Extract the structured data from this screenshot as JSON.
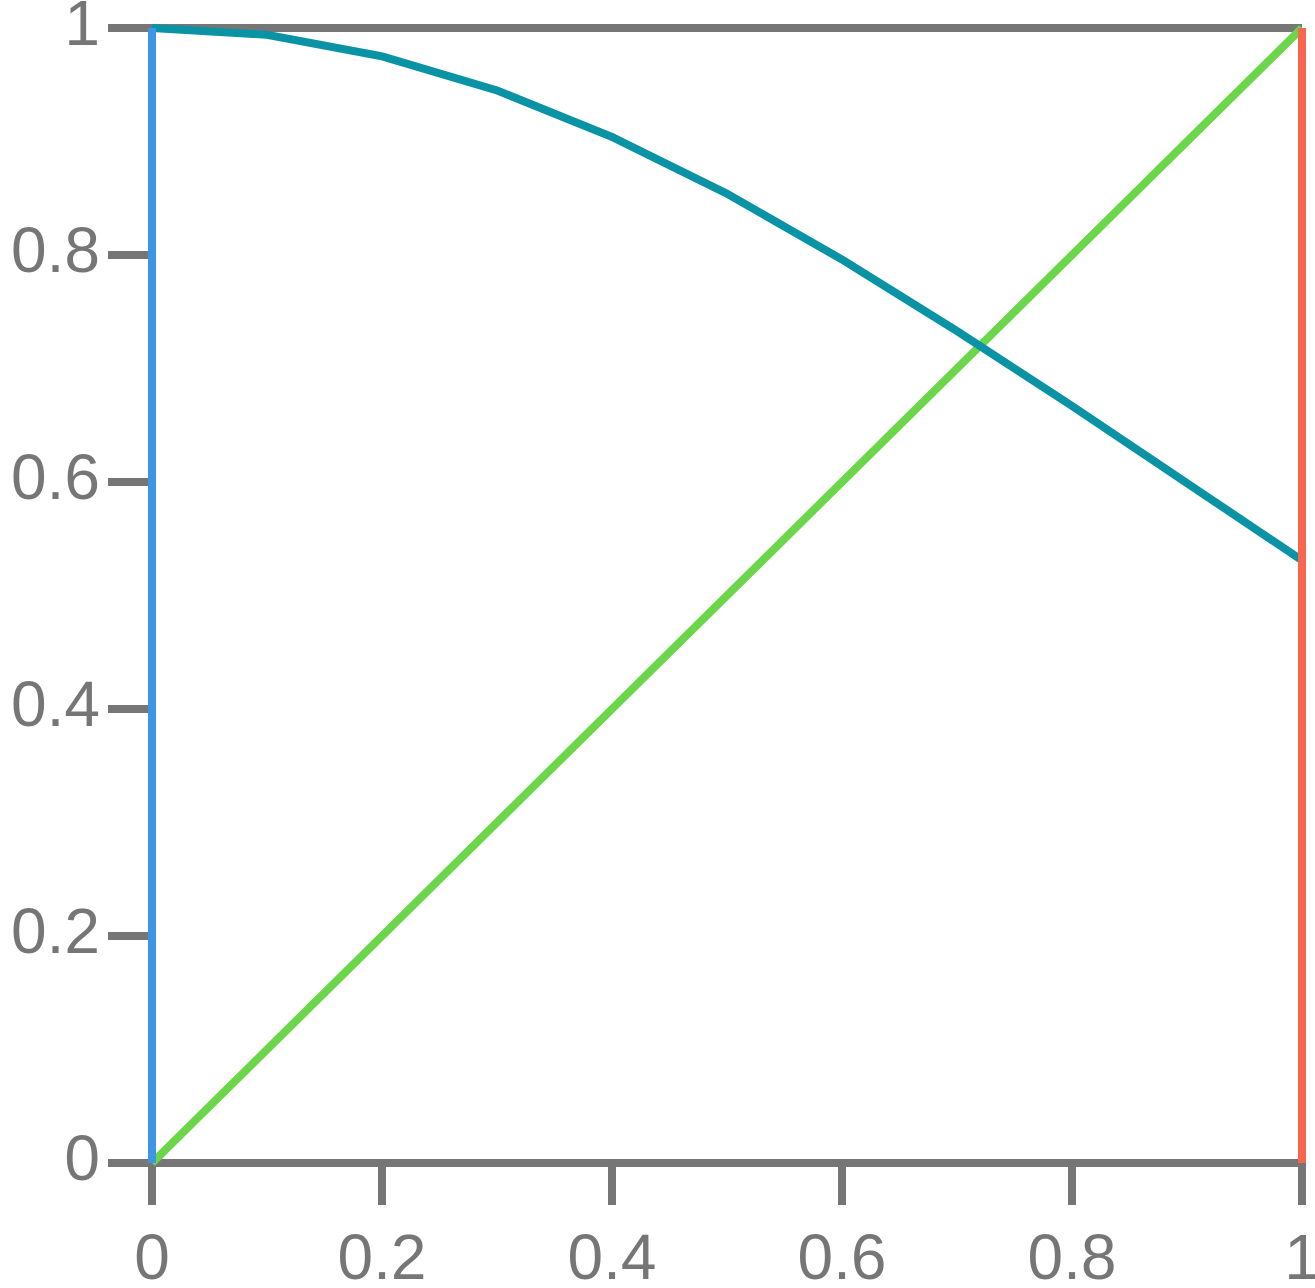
{
  "chart_data": {
    "type": "line",
    "xlim": [
      0,
      1
    ],
    "ylim": [
      0,
      1
    ],
    "xticks": [
      0,
      0.2,
      0.4,
      0.6,
      0.8,
      1
    ],
    "yticks": [
      0,
      0.2,
      0.4,
      0.6,
      0.8,
      1
    ],
    "series": [
      {
        "color": "#767676",
        "x": [
          0,
          1
        ],
        "values": [
          1,
          1
        ]
      },
      {
        "color": "#6bd64a",
        "x": [
          0,
          1
        ],
        "values": [
          0,
          1
        ]
      },
      {
        "color": "#0a93a4",
        "x": [
          0,
          0.1,
          0.2,
          0.3,
          0.4,
          0.5,
          0.6,
          0.7,
          0.8,
          0.9,
          1
        ],
        "values": [
          1,
          0.994,
          0.975,
          0.945,
          0.904,
          0.854,
          0.796,
          0.733,
          0.667,
          0.599,
          0.531
        ]
      },
      {
        "color": "#3d95e8",
        "x": [
          0,
          0
        ],
        "values": [
          0,
          1
        ]
      },
      {
        "color": "#f96650",
        "x": [
          1,
          1
        ],
        "values": [
          0,
          1
        ]
      }
    ]
  }
}
